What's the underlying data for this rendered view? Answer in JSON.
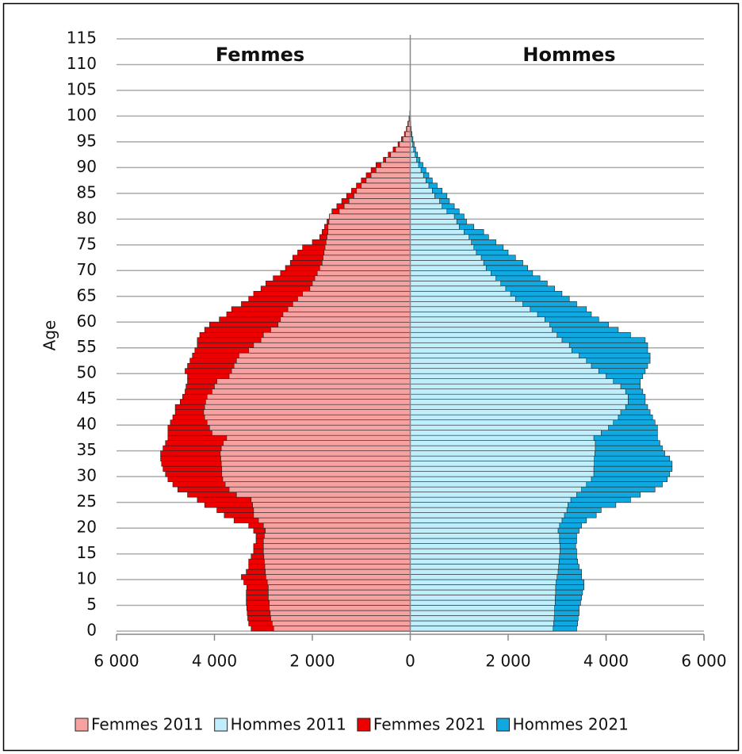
{
  "chart_data": {
    "type": "pyramid",
    "panel_titles": [
      "Femmes",
      "Hommes"
    ],
    "ylabel": "Age",
    "ages": [
      0,
      1,
      2,
      3,
      4,
      5,
      6,
      7,
      8,
      9,
      10,
      11,
      12,
      13,
      14,
      15,
      16,
      17,
      18,
      19,
      20,
      21,
      22,
      23,
      24,
      25,
      26,
      27,
      28,
      29,
      30,
      31,
      32,
      33,
      34,
      35,
      36,
      37,
      38,
      39,
      40,
      41,
      42,
      43,
      44,
      45,
      46,
      47,
      48,
      49,
      50,
      51,
      52,
      53,
      54,
      55,
      56,
      57,
      58,
      59,
      60,
      61,
      62,
      63,
      64,
      65,
      66,
      67,
      68,
      69,
      70,
      71,
      72,
      73,
      74,
      75,
      76,
      77,
      78,
      79,
      80,
      81,
      82,
      83,
      84,
      85,
      86,
      87,
      88,
      89,
      90,
      91,
      92,
      93,
      94,
      95,
      96,
      97,
      98,
      99,
      100
    ],
    "xlim": [
      -6000,
      6000
    ],
    "xticks": [
      {
        "value": -6000,
        "label": "6 000"
      },
      {
        "value": -4000,
        "label": "4 000"
      },
      {
        "value": -2000,
        "label": "2 000"
      },
      0,
      {
        "value": 2000,
        "label": "2 000"
      },
      {
        "value": 4000,
        "label": "4 000"
      },
      {
        "value": 6000,
        "label": "6 000"
      }
    ],
    "ylim": [
      0,
      115
    ],
    "yticks": [
      0,
      5,
      10,
      15,
      20,
      25,
      30,
      35,
      40,
      45,
      50,
      55,
      60,
      65,
      70,
      75,
      80,
      85,
      90,
      95,
      100,
      105,
      110,
      115
    ],
    "grid": true,
    "series": [
      {
        "name": "Femmes 2011",
        "color": "#f7a1a1",
        "side": "left",
        "values": [
          2790,
          2820,
          2850,
          2860,
          2880,
          2880,
          2900,
          2900,
          2900,
          2920,
          2950,
          2960,
          2970,
          2980,
          2990,
          3000,
          3000,
          3000,
          2980,
          2960,
          3000,
          3100,
          3200,
          3200,
          3220,
          3250,
          3550,
          3700,
          3780,
          3830,
          3850,
          3850,
          3860,
          3870,
          3880,
          3860,
          3820,
          3750,
          4050,
          4100,
          4150,
          4200,
          4220,
          4200,
          4180,
          4150,
          4050,
          4000,
          3950,
          3700,
          3650,
          3600,
          3550,
          3500,
          3300,
          3200,
          3050,
          3000,
          2850,
          2700,
          2650,
          2600,
          2500,
          2400,
          2300,
          2200,
          2050,
          2000,
          1950,
          1900,
          1850,
          1800,
          1780,
          1760,
          1740,
          1720,
          1700,
          1680,
          1680,
          1660,
          1650,
          1450,
          1350,
          1250,
          1150,
          1100,
          1000,
          900,
          800,
          700,
          600,
          500,
          400,
          300,
          220,
          150,
          100,
          70,
          40,
          20,
          10
        ]
      },
      {
        "name": "Hommes 2011",
        "color": "#bfeefc",
        "side": "right",
        "values": [
          2920,
          2930,
          2940,
          2950,
          2950,
          2960,
          2960,
          2970,
          2970,
          2980,
          3000,
          3020,
          3030,
          3040,
          3050,
          3060,
          3060,
          3050,
          3050,
          3020,
          3050,
          3100,
          3150,
          3200,
          3220,
          3280,
          3400,
          3500,
          3600,
          3700,
          3750,
          3750,
          3760,
          3760,
          3770,
          3780,
          3780,
          3750,
          3900,
          4050,
          4150,
          4250,
          4300,
          4400,
          4450,
          4450,
          4400,
          4300,
          4150,
          4000,
          3850,
          3700,
          3600,
          3450,
          3300,
          3250,
          3100,
          3000,
          2900,
          2850,
          2750,
          2600,
          2450,
          2300,
          2150,
          2050,
          1950,
          1850,
          1750,
          1650,
          1550,
          1500,
          1450,
          1350,
          1300,
          1250,
          1200,
          1100,
          1000,
          950,
          900,
          750,
          650,
          600,
          500,
          450,
          380,
          320,
          270,
          220,
          170,
          130,
          100,
          70,
          50,
          35,
          22,
          14,
          8,
          4,
          2
        ]
      },
      {
        "name": "Femmes 2021",
        "color": "#ee0000",
        "side": "left",
        "values": [
          3250,
          3300,
          3320,
          3330,
          3340,
          3350,
          3350,
          3350,
          3340,
          3400,
          3450,
          3350,
          3300,
          3300,
          3250,
          3200,
          3200,
          3150,
          3150,
          3200,
          3300,
          3600,
          3800,
          3950,
          4200,
          4350,
          4550,
          4750,
          4850,
          4950,
          5000,
          5050,
          5080,
          5100,
          5100,
          5050,
          5000,
          4950,
          4950,
          4950,
          4900,
          4850,
          4800,
          4800,
          4700,
          4650,
          4600,
          4580,
          4550,
          4550,
          4600,
          4550,
          4500,
          4450,
          4400,
          4350,
          4350,
          4300,
          4200,
          4100,
          3900,
          3750,
          3650,
          3450,
          3300,
          3200,
          3050,
          2950,
          2800,
          2650,
          2550,
          2450,
          2400,
          2300,
          2200,
          2000,
          1850,
          1800,
          1750,
          1700,
          1650,
          1600,
          1500,
          1400,
          1300,
          1200,
          1100,
          1000,
          900,
          800,
          700,
          550,
          450,
          350,
          250,
          180,
          120,
          80,
          50,
          25,
          10
        ]
      },
      {
        "name": "Hommes 2021",
        "color": "#10a8e0",
        "side": "right",
        "values": [
          3400,
          3420,
          3430,
          3450,
          3450,
          3480,
          3500,
          3520,
          3550,
          3550,
          3500,
          3500,
          3450,
          3420,
          3400,
          3400,
          3380,
          3400,
          3400,
          3450,
          3500,
          3600,
          3800,
          3900,
          4200,
          4500,
          4700,
          5000,
          5150,
          5250,
          5300,
          5350,
          5350,
          5300,
          5200,
          5150,
          5100,
          5050,
          5050,
          5050,
          5000,
          4950,
          4900,
          4850,
          4800,
          4800,
          4750,
          4700,
          4700,
          4750,
          4800,
          4850,
          4900,
          4900,
          4850,
          4850,
          4800,
          4500,
          4250,
          4050,
          3850,
          3700,
          3600,
          3400,
          3250,
          3100,
          2950,
          2800,
          2650,
          2500,
          2400,
          2300,
          2150,
          2000,
          1900,
          1750,
          1600,
          1500,
          1300,
          1150,
          1100,
          1000,
          900,
          800,
          750,
          650,
          550,
          450,
          380,
          320,
          260,
          200,
          150,
          110,
          80,
          55,
          35,
          20,
          10,
          5,
          2
        ]
      }
    ]
  }
}
